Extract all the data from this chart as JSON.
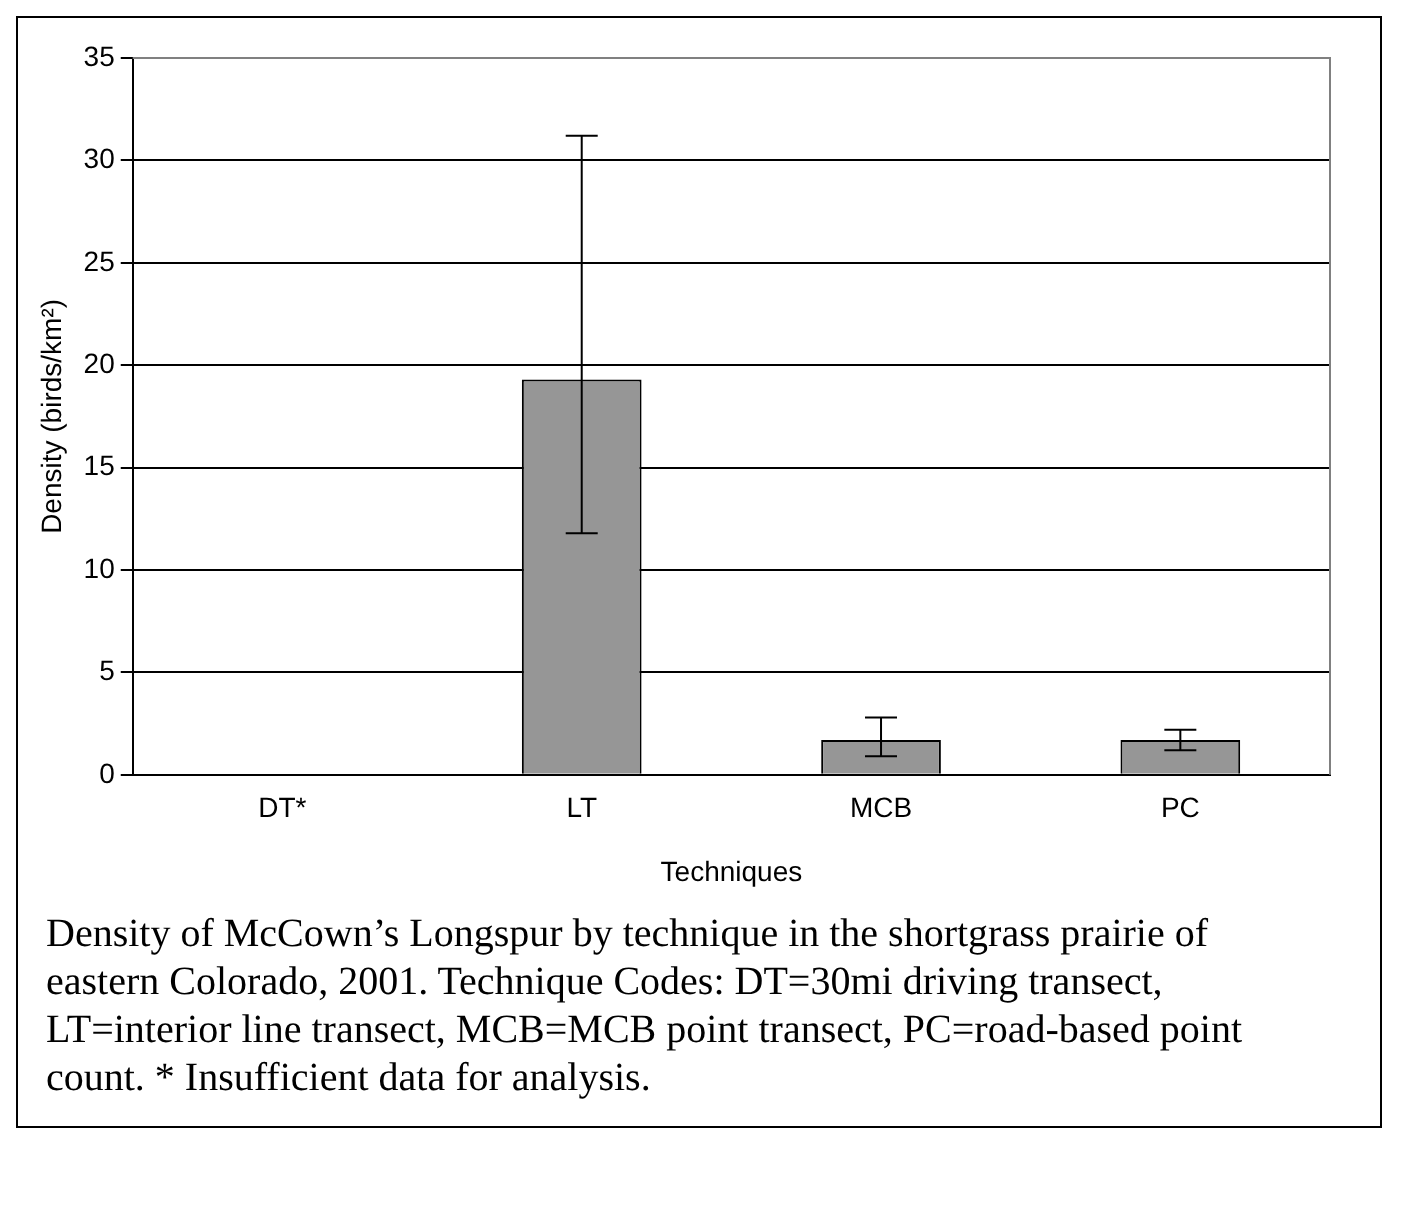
{
  "chart_data": {
    "type": "bar",
    "xlabel": "Techniques",
    "ylabel": "Density (birds/km²)",
    "categories": [
      "DT*",
      "LT",
      "MCB",
      "PC"
    ],
    "values": [
      0,
      19.3,
      1.7,
      1.7
    ],
    "errors": [
      null,
      [
        11.8,
        31.2
      ],
      [
        0.9,
        2.8
      ],
      [
        1.2,
        2.2
      ]
    ],
    "color": "#969696",
    "ylim": [
      0,
      35
    ],
    "yticks": [
      0,
      5,
      10,
      15,
      20,
      25,
      30,
      35
    ],
    "grid": "y",
    "legend": false,
    "annotations": [
      "Density of McCown’s Longspur by technique in the shortgrass prairie of eastern Colorado, 2001.  Technique Codes:  DT=30mi driving transect, LT=interior line transect, MCB=MCB point transect, PC=road-based point count.  * Insufficient data for analysis."
    ]
  }
}
